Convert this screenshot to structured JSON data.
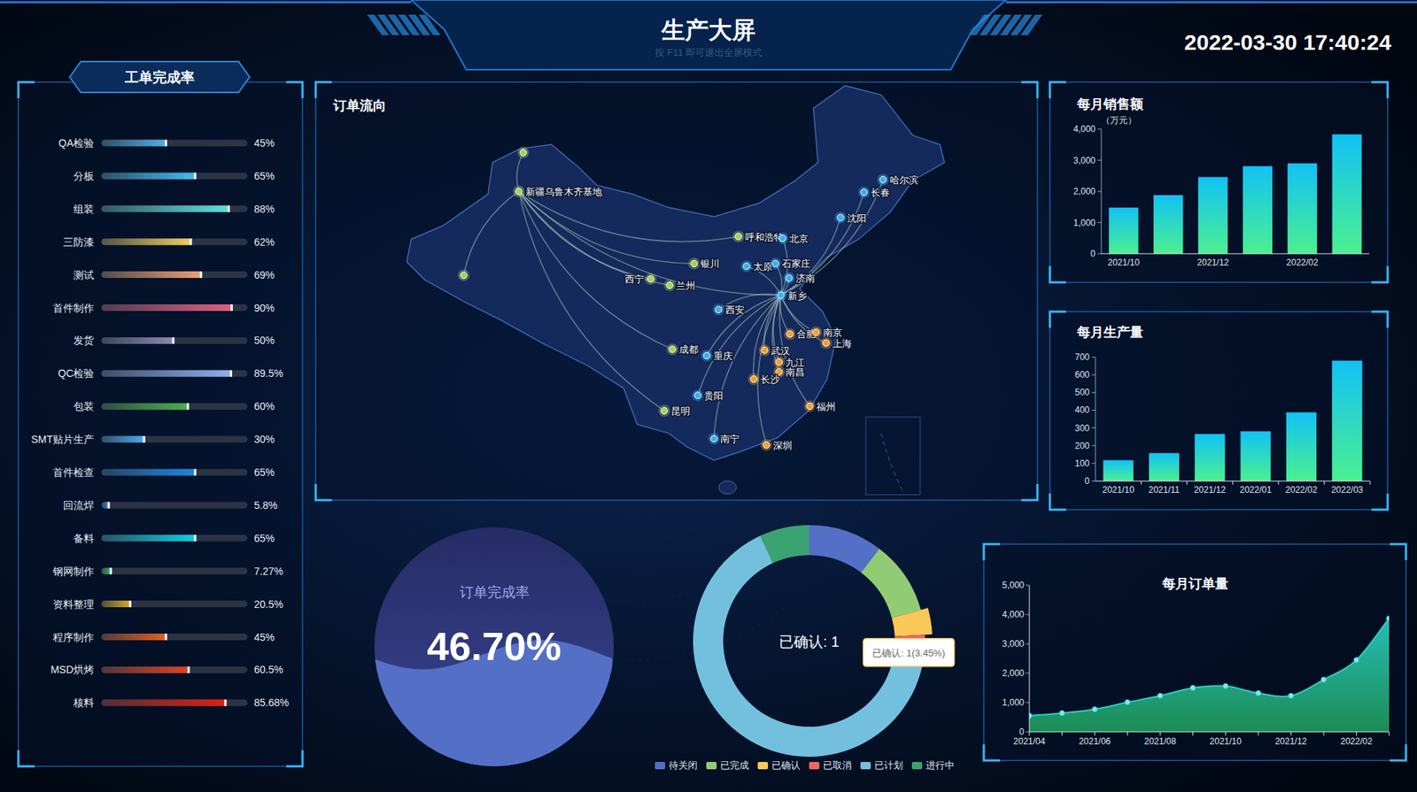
{
  "header": {
    "title": "生产大屏",
    "hint": "按 F11 即可退出全屏模式",
    "datetime": "2022-03-30 17:40:24"
  },
  "map": {
    "title": "订单流向",
    "cities": [
      {
        "name": null,
        "color": "#a8d05a"
      },
      {
        "name": "新疆乌鲁木齐基地",
        "color": "#a8d05a"
      },
      {
        "name": null,
        "color": "#a8d05a"
      },
      {
        "name": "呼和浩特",
        "color": "#a8d05a"
      },
      {
        "name": "北京",
        "color": "#3ab0f0"
      },
      {
        "name": "哈尔滨",
        "color": "#3ab0f0"
      },
      {
        "name": "长春",
        "color": "#3ab0f0"
      },
      {
        "name": "沈阳",
        "color": "#3ab0f0"
      },
      {
        "name": "银川",
        "color": "#a8d05a"
      },
      {
        "name": "太原",
        "color": "#3ab0f0"
      },
      {
        "name": "石家庄",
        "color": "#3ab0f0"
      },
      {
        "name": "济南",
        "color": "#3ab0f0"
      },
      {
        "name": "西宁",
        "color": "#a8d05a"
      },
      {
        "name": "兰州",
        "color": "#a8d05a"
      },
      {
        "name": "新乡",
        "color": "#3ab0f0"
      },
      {
        "name": "西安",
        "color": "#3ab0f0"
      },
      {
        "name": "合肥",
        "color": "#f0a030"
      },
      {
        "name": "南京",
        "color": "#f0a030"
      },
      {
        "name": "上海",
        "color": "#f0a030"
      },
      {
        "name": "成都",
        "color": "#a8d05a"
      },
      {
        "name": "重庆",
        "color": "#3ab0f0"
      },
      {
        "name": "武汉",
        "color": "#f0a030"
      },
      {
        "name": "九江",
        "color": "#f0a030"
      },
      {
        "name": "南昌",
        "color": "#f0a030"
      },
      {
        "name": "长沙",
        "color": "#f0a030"
      },
      {
        "name": "贵阳",
        "color": "#3ab0f0"
      },
      {
        "name": "福州",
        "color": "#f0a030"
      },
      {
        "name": "昆明",
        "color": "#a8d05a"
      },
      {
        "name": "南宁",
        "color": "#3ab0f0"
      },
      {
        "name": "深圳",
        "color": "#f0a030"
      }
    ]
  },
  "chart_data": [
    {
      "type": "progress",
      "title": "工单完成率",
      "orientation": "horizontal",
      "categories": [
        "QA检验",
        "分板",
        "组装",
        "三防漆",
        "测试",
        "首件制作",
        "发货",
        "QC检验",
        "包装",
        "SMT贴片生产",
        "首件检查",
        "回流焊",
        "备料",
        "钢网制作",
        "资料整理",
        "程序制作",
        "MSD烘烤",
        "核料"
      ],
      "values": [
        45,
        65,
        88,
        62,
        69,
        90,
        50,
        89.5,
        60,
        30,
        65,
        5.8,
        65,
        7.27,
        20.5,
        45,
        60.5,
        85.68
      ],
      "value_labels": [
        "45%",
        "65%",
        "88%",
        "62%",
        "69%",
        "90%",
        "50%",
        "89.5%",
        "60%",
        "30%",
        "65%",
        "5.8%",
        "65%",
        "7.27%",
        "20.5%",
        "45%",
        "60.5%",
        "85.68%"
      ],
      "colors": [
        "#4fb3e8",
        "#3fc0f0",
        "#5ee0e0",
        "#f0d060",
        "#f0a070",
        "#e06080",
        "#8a8ab0",
        "#8fb0f0",
        "#4ab050",
        "#4ab0f0",
        "#1a8ae0",
        "#3a8ae0",
        "#10d0e0",
        "#30c060",
        "#e0b020",
        "#e06020",
        "#e04020",
        "#e02010"
      ],
      "xlim": [
        0,
        100
      ],
      "data_labels": true,
      "tick_labels": "y"
    },
    {
      "type": "liquid",
      "title": "订单完成率",
      "values": [
        46.7
      ],
      "value_labels": [
        "46.70%"
      ],
      "ylim": [
        0,
        100
      ],
      "color": "#5470c6",
      "data_labels": true
    },
    {
      "type": "pie",
      "categories": [
        "待关闭",
        "已完成",
        "已确认",
        "已取消",
        "已计划",
        "进行中"
      ],
      "values": [
        3,
        3,
        1,
        1,
        19,
        2
      ],
      "colors": [
        "#5470c6",
        "#91cc75",
        "#fac858",
        "#ee6666",
        "#73c0de",
        "#3ba272"
      ],
      "legend": "bottom",
      "center_label": "已确认: 1",
      "tooltip": "已确认: 1(3.45%)"
    },
    {
      "type": "bar",
      "title": "每月销售额",
      "y_label": "（万元）",
      "categories": [
        "2021/10",
        null,
        "2021/12",
        null,
        "2022/02",
        null
      ],
      "values": [
        1480,
        1880,
        2460,
        2810,
        2900,
        3830
      ],
      "color": "#11c2f5",
      "ylim": [
        0,
        4000
      ],
      "yticks": [
        0,
        {
          "value": 1000,
          "label": "1,000"
        },
        {
          "value": 2000,
          "label": "2,000"
        },
        {
          "value": 3000,
          "label": "3,000"
        },
        {
          "value": 4000,
          "label": "4,000"
        }
      ],
      "grid": false
    },
    {
      "type": "bar",
      "title": "每月生产量",
      "categories": [
        "2021/10",
        "2021/11",
        "2021/12",
        "2022/01",
        "2022/02",
        "2022/03"
      ],
      "values": [
        118,
        158,
        266,
        281,
        388,
        680
      ],
      "color": "#11c2f5",
      "ylim": [
        0,
        700
      ],
      "yticks": [
        0,
        100,
        200,
        300,
        400,
        500,
        600,
        700
      ],
      "grid": false
    },
    {
      "type": "area",
      "title": "每月订单量",
      "categories": [
        "2021/04",
        null,
        "2021/06",
        null,
        "2021/08",
        null,
        "2021/10",
        null,
        "2021/12",
        null,
        "2022/02",
        null
      ],
      "values": [
        550,
        640,
        770,
        1010,
        1230,
        1500,
        1560,
        1320,
        1230,
        1780,
        2450,
        3870
      ],
      "color": "#2ad0c8",
      "marker": "circle",
      "ylim": [
        0,
        5000
      ],
      "yticks": [
        0,
        {
          "value": 1000,
          "label": "1,000"
        },
        {
          "value": 2000,
          "label": "2,000"
        },
        {
          "value": 3000,
          "label": "3,000"
        },
        {
          "value": 4000,
          "label": "4,000"
        },
        {
          "value": 5000,
          "label": "5,000"
        }
      ],
      "grid": false
    }
  ]
}
